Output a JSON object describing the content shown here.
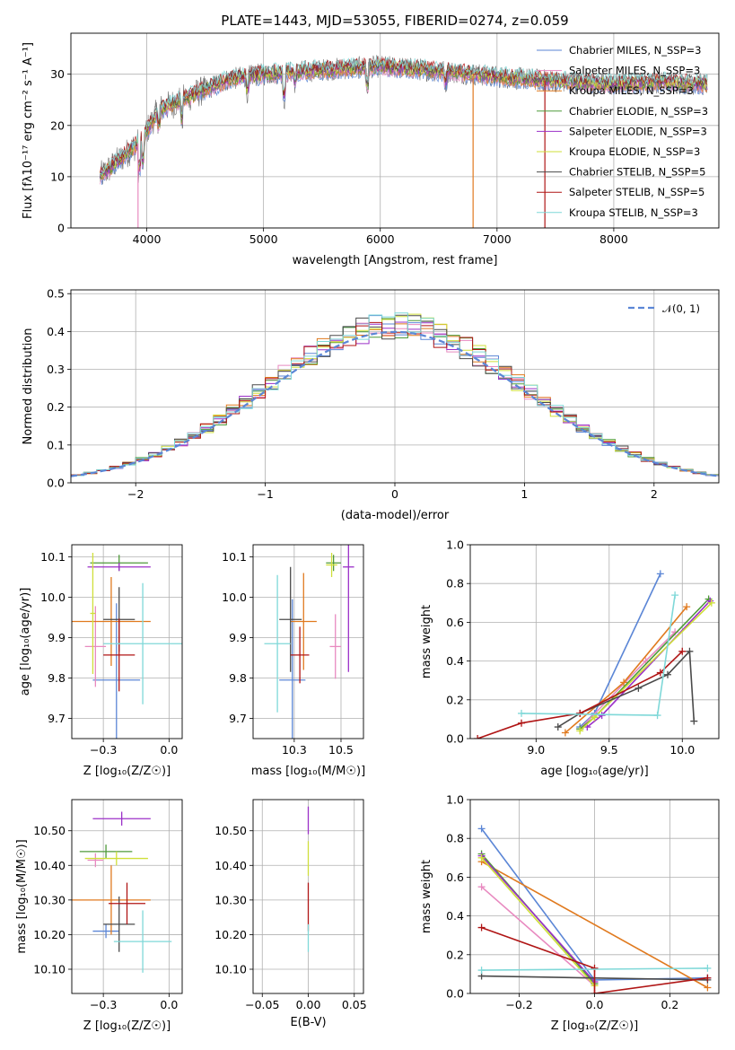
{
  "colors": {
    "chabrier_miles": "#5b86d6",
    "salpeter_miles": "#e88ac0",
    "kroupa_miles": "#e07a1f",
    "chabrier_elodie": "#4f9a3a",
    "salpeter_elodie": "#9b30c8",
    "kroupa_elodie": "#cfdf3a",
    "chabrier_stelib": "#4a4a4a",
    "salpeter_stelib": "#b01515",
    "kroupa_stelib": "#7fd8d8",
    "gaussian": "#5b86d6"
  },
  "chart_data": [
    {
      "id": "spectrum",
      "type": "line",
      "title": "PLATE=1443, MJD=53055, FIBERID=0274, z=0.059",
      "xlabel": "wavelength [Angstrom, rest frame]",
      "ylabel": "Flux [fλ10⁻¹⁷ erg cm⁻² s⁻¹ A⁻¹]",
      "xlim": [
        3350,
        8900
      ],
      "ylim": [
        0,
        38
      ],
      "xticks": [
        4000,
        5000,
        6000,
        7000,
        8000
      ],
      "yticks": [
        0,
        10,
        20,
        30
      ],
      "legend_position": "top-right",
      "legend": [
        "Chabrier MILES, N_SSP=3",
        "Salpeter MILES, N_SSP=3",
        "Kroupa MILES, N_SSP=3",
        "Chabrier ELODIE, N_SSP=3",
        "Salpeter ELODIE, N_SSP=3",
        "Kroupa ELODIE, N_SSP=3",
        "Chabrier STELIB, N_SSP=5",
        "Salpeter STELIB, N_SSP=5",
        "Kroupa STELIB, N_SSP=3"
      ],
      "continuum": {
        "x": [
          3600,
          3800,
          3950,
          4100,
          4300,
          4500,
          4700,
          5000,
          5300,
          5600,
          6000,
          6300,
          6600,
          7000,
          7300,
          7600,
          8000,
          8400,
          8800
        ],
        "y": [
          10,
          14,
          17,
          23,
          25,
          27,
          29,
          30,
          30.5,
          31,
          31.5,
          31,
          30.5,
          29.5,
          29,
          28.5,
          28,
          28.5,
          28
        ]
      }
    },
    {
      "id": "residuals",
      "type": "histogram",
      "xlabel": "(data-model)/error",
      "ylabel": "Normed distribution",
      "xlim": [
        -2.5,
        2.5
      ],
      "ylim": [
        0,
        0.51
      ],
      "xticks": [
        -2,
        -1,
        0,
        1,
        2
      ],
      "yticks": [
        0.0,
        0.1,
        0.2,
        0.3,
        0.4,
        0.5
      ],
      "bin_width": 0.1,
      "legend_position": "top-right",
      "legend": [
        "𝒩(0, 1)"
      ]
    },
    {
      "id": "age_vs_z",
      "type": "errorbar",
      "xlabel": "Z [log₁₀(Z/Z☉)]",
      "ylabel": "age  [log₁₀(age/yr)]",
      "xlim": [
        -0.37,
        0.05
      ],
      "ylim": [
        9.65,
        10.13
      ],
      "xticks": [
        -0.25,
        0.0
      ],
      "yticks": [
        9.7,
        9.8,
        9.9,
        10.0,
        10.1
      ],
      "points": [
        {
          "x": -0.2,
          "y": 9.795,
          "xerr": 0.09,
          "yerr": 0.19
        },
        {
          "x": -0.28,
          "y": 9.878,
          "xerr": 0.04,
          "yerr": 0.1
        },
        {
          "x": -0.22,
          "y": 9.94,
          "xerr": 0.15,
          "yerr": 0.11
        },
        {
          "x": -0.19,
          "y": 10.085,
          "xerr": 0.11,
          "yerr": 0.02
        },
        {
          "x": -0.19,
          "y": 10.075,
          "xerr": 0.12,
          "yerr": 0.01
        },
        {
          "x": -0.29,
          "y": 9.96,
          "xerr": 0.01,
          "yerr": 0.15
        },
        {
          "x": -0.19,
          "y": 9.945,
          "xerr": 0.06,
          "yerr": 0.08
        },
        {
          "x": -0.19,
          "y": 9.857,
          "xerr": 0.06,
          "yerr": 0.09
        },
        {
          "x": -0.1,
          "y": 9.885,
          "xerr": 0.15,
          "yerr": 0.15
        }
      ]
    },
    {
      "id": "age_vs_mass",
      "type": "errorbar",
      "xlabel": "mass [log₁₀(M/M☉)]",
      "ylabel": "",
      "xlim": [
        10.03,
        10.62
      ],
      "ylim": [
        9.65,
        10.13
      ],
      "xticks": [
        10.25,
        10.5
      ],
      "yticks": [
        9.7,
        9.8,
        9.9,
        10.0,
        10.1
      ],
      "points": [
        {
          "x": 10.24,
          "y": 9.795,
          "xerr": 0.07,
          "yerr": 0.2
        },
        {
          "x": 10.47,
          "y": 9.878,
          "xerr": 0.03,
          "yerr": 0.08
        },
        {
          "x": 10.3,
          "y": 9.94,
          "xerr": 0.07,
          "yerr": 0.12
        },
        {
          "x": 10.46,
          "y": 10.085,
          "xerr": 0.04,
          "yerr": 0.02
        },
        {
          "x": 10.54,
          "y": 10.075,
          "xerr": 0.03,
          "yerr": 0.26
        },
        {
          "x": 10.45,
          "y": 10.08,
          "xerr": 0.03,
          "yerr": 0.03
        },
        {
          "x": 10.23,
          "y": 9.945,
          "xerr": 0.06,
          "yerr": 0.13
        },
        {
          "x": 10.28,
          "y": 9.857,
          "xerr": 0.05,
          "yerr": 0.07
        },
        {
          "x": 10.16,
          "y": 9.885,
          "xerr": 0.07,
          "yerr": 0.17
        }
      ]
    },
    {
      "id": "weight_vs_age",
      "type": "line",
      "xlabel": "age  [log₁₀(age/yr)]",
      "ylabel": "mass weight",
      "xlim": [
        8.55,
        10.25
      ],
      "ylim": [
        0.0,
        1.0
      ],
      "xticks": [
        9.0,
        9.5,
        10.0
      ],
      "yticks": [
        0.0,
        0.2,
        0.4,
        0.6,
        0.8,
        1.0
      ],
      "series": [
        {
          "color_key": "chabrier_miles",
          "x": [
            9.3,
            9.4,
            9.85
          ],
          "y": [
            0.06,
            0.13,
            0.85
          ]
        },
        {
          "color_key": "salpeter_miles",
          "x": [
            9.3,
            9.75,
            9.95
          ],
          "y": [
            0.05,
            0.4,
            0.55
          ]
        },
        {
          "color_key": "kroupa_miles",
          "x": [
            9.2,
            9.6,
            10.03
          ],
          "y": [
            0.03,
            0.29,
            0.68
          ]
        },
        {
          "color_key": "chabrier_elodie",
          "x": [
            9.3,
            9.4,
            10.18
          ],
          "y": [
            0.05,
            0.11,
            0.72
          ]
        },
        {
          "color_key": "salpeter_elodie",
          "x": [
            9.35,
            9.45,
            10.19
          ],
          "y": [
            0.06,
            0.12,
            0.71
          ]
        },
        {
          "color_key": "kroupa_elodie",
          "x": [
            9.3,
            9.4,
            10.2
          ],
          "y": [
            0.04,
            0.11,
            0.7
          ]
        },
        {
          "color_key": "chabrier_stelib",
          "x": [
            9.15,
            9.3,
            9.7,
            9.9,
            10.05,
            10.08
          ],
          "y": [
            0.06,
            0.13,
            0.26,
            0.33,
            0.45,
            0.09
          ]
        },
        {
          "color_key": "salpeter_stelib",
          "x": [
            8.6,
            8.9,
            9.3,
            9.85,
            10.0
          ],
          "y": [
            0.0,
            0.08,
            0.13,
            0.34,
            0.45
          ]
        },
        {
          "color_key": "kroupa_stelib",
          "x": [
            8.9,
            9.83,
            9.95
          ],
          "y": [
            0.13,
            0.12,
            0.74
          ]
        }
      ]
    },
    {
      "id": "mass_vs_z",
      "type": "errorbar",
      "xlabel": "Z [log₁₀(Z/Z☉)]",
      "ylabel": "mass [log₁₀(M/M☉)]",
      "xlim": [
        -0.37,
        0.05
      ],
      "ylim": [
        10.03,
        10.59
      ],
      "xticks": [
        -0.25,
        0.0
      ],
      "yticks": [
        10.1,
        10.2,
        10.3,
        10.4,
        10.5
      ],
      "points": [
        {
          "x": -0.24,
          "y": 10.21,
          "xerr": 0.05,
          "yerr": 0.02
        },
        {
          "x": -0.28,
          "y": 10.415,
          "xerr": 0.03,
          "yerr": 0.02
        },
        {
          "x": -0.22,
          "y": 10.3,
          "xerr": 0.15,
          "yerr": 0.1
        },
        {
          "x": -0.24,
          "y": 10.44,
          "xerr": 0.1,
          "yerr": 0.02
        },
        {
          "x": -0.18,
          "y": 10.535,
          "xerr": 0.11,
          "yerr": 0.02
        },
        {
          "x": -0.2,
          "y": 10.42,
          "xerr": 0.12,
          "yerr": 0.02
        },
        {
          "x": -0.19,
          "y": 10.23,
          "xerr": 0.06,
          "yerr": 0.08
        },
        {
          "x": -0.16,
          "y": 10.29,
          "xerr": 0.07,
          "yerr": 0.06
        },
        {
          "x": -0.1,
          "y": 10.18,
          "xerr": 0.11,
          "yerr": 0.09
        }
      ]
    },
    {
      "id": "mass_vs_ebv",
      "type": "errorbar",
      "xlabel": "E(B-V)",
      "ylabel": "",
      "xlim": [
        -0.06,
        0.06
      ],
      "ylim": [
        10.03,
        10.59
      ],
      "xticks": [
        -0.05,
        0.0,
        0.05
      ],
      "yticks": [
        10.1,
        10.2,
        10.3,
        10.4,
        10.5
      ],
      "points": [
        {
          "x": 0.0,
          "y": 10.53,
          "xerr": 0.0,
          "yerr": 0.04
        },
        {
          "x": 0.0,
          "y": 10.42,
          "xerr": 0.0,
          "yerr": 0.05
        },
        {
          "x": 0.0,
          "y": 10.28,
          "xerr": 0.0,
          "yerr": 0.07
        },
        {
          "x": 0.0,
          "y": 10.19,
          "xerr": 0.0,
          "yerr": 0.04
        }
      ]
    },
    {
      "id": "weight_vs_z",
      "type": "line",
      "xlabel": "Z [log₁₀(Z/Z☉)]",
      "ylabel": "mass weight",
      "xlim": [
        -0.33,
        0.33
      ],
      "ylim": [
        0.0,
        1.0
      ],
      "xticks": [
        -0.2,
        0.0,
        0.2
      ],
      "yticks": [
        0.0,
        0.2,
        0.4,
        0.6,
        0.8,
        1.0
      ],
      "series": [
        {
          "color_key": "chabrier_miles",
          "x": [
            -0.3,
            0.0,
            0.3
          ],
          "y": [
            0.85,
            0.07,
            0.08
          ]
        },
        {
          "color_key": "salpeter_miles",
          "x": [
            -0.3,
            0.0
          ],
          "y": [
            0.55,
            0.04
          ]
        },
        {
          "color_key": "kroupa_miles",
          "x": [
            -0.3,
            0.3
          ],
          "y": [
            0.68,
            0.03
          ]
        },
        {
          "color_key": "chabrier_elodie",
          "x": [
            -0.3,
            0.0
          ],
          "y": [
            0.72,
            0.05
          ]
        },
        {
          "color_key": "salpeter_elodie",
          "x": [
            -0.3,
            0.0
          ],
          "y": [
            0.71,
            0.06
          ]
        },
        {
          "color_key": "kroupa_elodie",
          "x": [
            -0.3,
            0.0
          ],
          "y": [
            0.7,
            0.04
          ]
        },
        {
          "color_key": "chabrier_stelib",
          "x": [
            -0.3,
            0.3
          ],
          "y": [
            0.09,
            0.07
          ]
        },
        {
          "color_key": "salpeter_stelib",
          "x": [
            -0.3,
            0.0,
            0.0,
            0.3
          ],
          "y": [
            0.34,
            0.13,
            0.0,
            0.08
          ]
        },
        {
          "color_key": "kroupa_stelib",
          "x": [
            -0.3,
            0.3
          ],
          "y": [
            0.12,
            0.13
          ]
        }
      ]
    }
  ]
}
